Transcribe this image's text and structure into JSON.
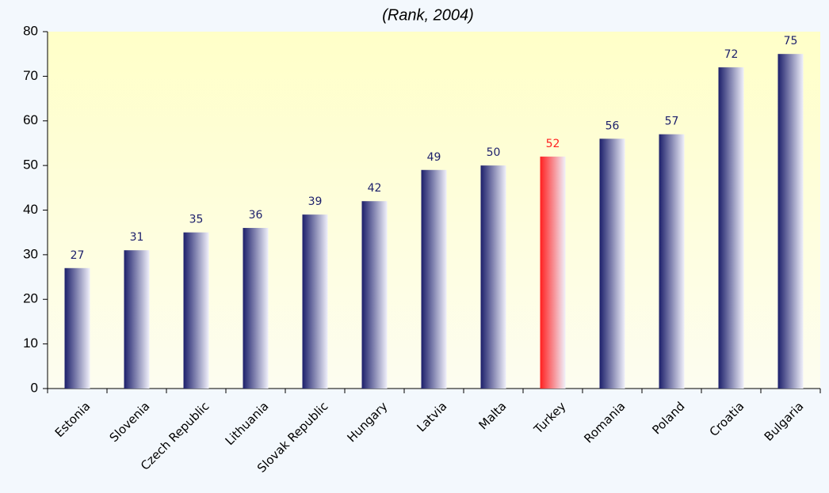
{
  "chart_data": {
    "type": "bar",
    "title": "(Rank, 2004)",
    "categories": [
      "Estonia",
      "Slovenia",
      "Czech Republic",
      "Lithuania",
      "Slovak Republic",
      "Hungary",
      "Latvia",
      "Malta",
      "Turkey",
      "Romania",
      "Poland",
      "Croatia",
      "Bulgaria"
    ],
    "values": [
      27,
      31,
      35,
      36,
      39,
      42,
      49,
      50,
      52,
      56,
      57,
      72,
      75
    ],
    "colors": [
      "#1c1f6b",
      "#1c1f6b",
      "#1c1f6b",
      "#1c1f6b",
      "#1c1f6b",
      "#1c1f6b",
      "#1c1f6b",
      "#1c1f6b",
      "#ff2020",
      "#1c1f6b",
      "#1c1f6b",
      "#1c1f6b",
      "#1c1f6b"
    ],
    "ylim": [
      0,
      80
    ],
    "yticks": [
      0,
      10,
      20,
      30,
      40,
      50,
      60,
      70,
      80
    ],
    "grid": false
  }
}
